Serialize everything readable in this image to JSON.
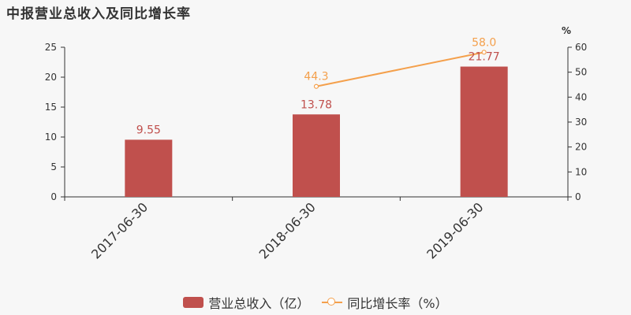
{
  "title": "中报营业总收入及同比增长率",
  "colors": {
    "bar": "#c0504d",
    "line": "#f4a04c",
    "axis": "#333333",
    "text": "#333333"
  },
  "chart_data": {
    "type": "bar",
    "categories": [
      "2017-06-30",
      "2018-06-30",
      "2019-06-30"
    ],
    "series": [
      {
        "name": "营业总收入（亿）",
        "type": "bar",
        "axis": "left",
        "values": [
          9.55,
          13.78,
          21.77
        ],
        "labels": [
          "9.55",
          "13.78",
          "21.77"
        ]
      },
      {
        "name": "同比增长率（%）",
        "type": "line",
        "axis": "right",
        "values": [
          null,
          44.3,
          58.0
        ],
        "labels": [
          null,
          "44.3",
          "58.0"
        ]
      }
    ],
    "y_left": {
      "range": [
        0,
        25
      ],
      "ticks": [
        "0",
        "5",
        "10",
        "15",
        "20",
        "25"
      ]
    },
    "y_right": {
      "label": "%",
      "range": [
        0,
        60
      ],
      "ticks": [
        "0",
        "10",
        "20",
        "30",
        "40",
        "50",
        "60"
      ]
    },
    "grid": false,
    "legend": "bottom-center"
  }
}
